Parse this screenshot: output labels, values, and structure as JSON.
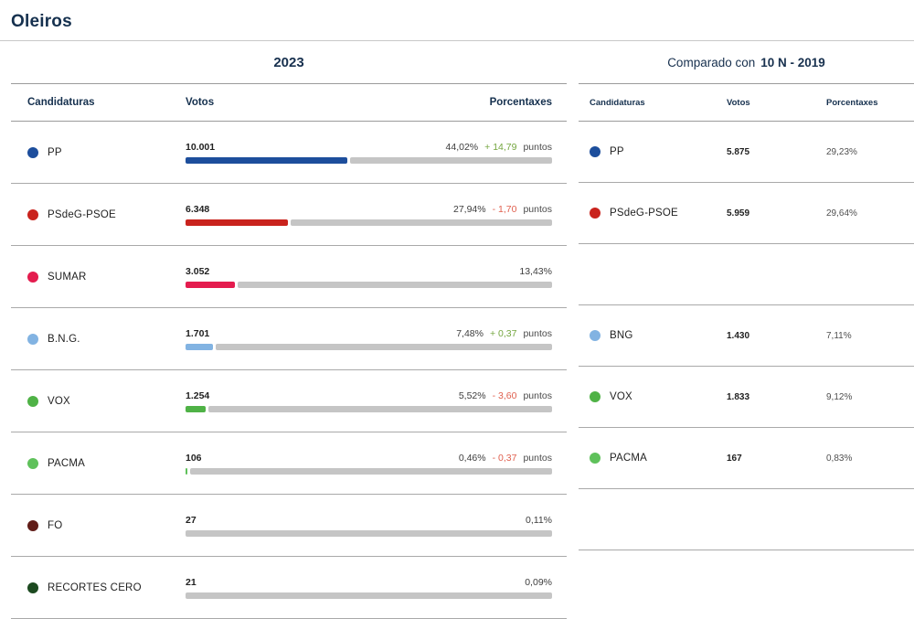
{
  "title": "Oleiros",
  "left_panel": {
    "year": "2023",
    "columns": {
      "candidaturas": "Candidaturas",
      "votos": "Votos",
      "porcentaxes": "Porcentaxes"
    },
    "rows": [
      {
        "party": "PP",
        "color": "#1d4e9c",
        "votes": "10.001",
        "pct": "44,02%",
        "pct_value": 44.02,
        "change": "+ 14,79",
        "change_dir": "up",
        "puntos": "puntos"
      },
      {
        "party": "PSdeG-PSOE",
        "color": "#c9231d",
        "votes": "6.348",
        "pct": "27,94%",
        "pct_value": 27.94,
        "change": "- 1,70",
        "change_dir": "down",
        "puntos": "puntos"
      },
      {
        "party": "SUMAR",
        "color": "#e41c4e",
        "votes": "3.052",
        "pct": "13,43%",
        "pct_value": 13.43,
        "change": "",
        "change_dir": "",
        "puntos": ""
      },
      {
        "party": "B.N.G.",
        "color": "#82b3e2",
        "votes": "1.701",
        "pct": "7,48%",
        "pct_value": 7.48,
        "change": "+ 0,37",
        "change_dir": "up",
        "puntos": "puntos"
      },
      {
        "party": "VOX",
        "color": "#4fb246",
        "votes": "1.254",
        "pct": "5,52%",
        "pct_value": 5.52,
        "change": "- 3,60",
        "change_dir": "down",
        "puntos": "puntos"
      },
      {
        "party": "PACMA",
        "color": "#5fc15b",
        "votes": "106",
        "pct": "0,46%",
        "pct_value": 0.46,
        "change": "- 0,37",
        "change_dir": "down",
        "puntos": "puntos"
      },
      {
        "party": "FO",
        "color": "#611d18",
        "votes": "27",
        "pct": "0,11%",
        "pct_value": 0.11,
        "change": "",
        "change_dir": "",
        "puntos": ""
      },
      {
        "party": "RECORTES CERO",
        "color": "#1c4a20",
        "votes": "21",
        "pct": "0,09%",
        "pct_value": 0.09,
        "change": "",
        "change_dir": "",
        "puntos": ""
      }
    ]
  },
  "right_panel": {
    "header_prefix": "Comparado con",
    "header_bold": "10 N - 2019",
    "columns": {
      "candidaturas": "Candidaturas",
      "votos": "Votos",
      "porcentaxes": "Porcentaxes"
    },
    "rows": [
      {
        "party": "PP",
        "color": "#1d4e9c",
        "votes": "5.875",
        "pct": "29,23%",
        "empty": false
      },
      {
        "party": "PSdeG-PSOE",
        "color": "#c9231d",
        "votes": "5.959",
        "pct": "29,64%",
        "empty": false
      },
      {
        "party": "",
        "color": "",
        "votes": "",
        "pct": "",
        "empty": true
      },
      {
        "party": "BNG",
        "color": "#82b3e2",
        "votes": "1.430",
        "pct": "7,11%",
        "empty": false
      },
      {
        "party": "VOX",
        "color": "#4fb246",
        "votes": "1.833",
        "pct": "9,12%",
        "empty": false
      },
      {
        "party": "PACMA",
        "color": "#5fc15b",
        "votes": "167",
        "pct": "0,83%",
        "empty": false
      },
      {
        "party": "",
        "color": "",
        "votes": "",
        "pct": "",
        "empty": true
      }
    ]
  },
  "chart_data": {
    "type": "bar",
    "orientation": "horizontal",
    "title": "Oleiros",
    "legend_position": "none",
    "grid": false,
    "xlim_percent": [
      0,
      100
    ],
    "groups": [
      {
        "name": "2023",
        "categories": [
          "PP",
          "PSdeG-PSOE",
          "SUMAR",
          "B.N.G.",
          "VOX",
          "PACMA",
          "FO",
          "RECORTES CERO"
        ],
        "votes": [
          10001,
          6348,
          3052,
          1701,
          1254,
          106,
          27,
          21
        ],
        "percent": [
          44.02,
          27.94,
          13.43,
          7.48,
          5.52,
          0.46,
          0.11,
          0.09
        ],
        "change_puntos": [
          14.79,
          -1.7,
          null,
          0.37,
          -3.6,
          -0.37,
          null,
          null
        ],
        "bar_colors": [
          "#1d4e9c",
          "#c9231d",
          "#e41c4e",
          "#82b3e2",
          "#4fb246",
          "#5fc15b",
          "#611d18",
          "#1c4a20"
        ]
      },
      {
        "name": "10 N - 2019",
        "categories": [
          "PP",
          "PSdeG-PSOE",
          "BNG",
          "VOX",
          "PACMA"
        ],
        "votes": [
          5875,
          5959,
          1430,
          1833,
          167
        ],
        "percent": [
          29.23,
          29.64,
          7.11,
          9.12,
          0.83
        ]
      }
    ],
    "colors": {
      "positive_change": "#74a63f",
      "negative_change": "#e0604f",
      "bar_track": "#c5c5c5",
      "heading_navy": "#15304e"
    }
  }
}
